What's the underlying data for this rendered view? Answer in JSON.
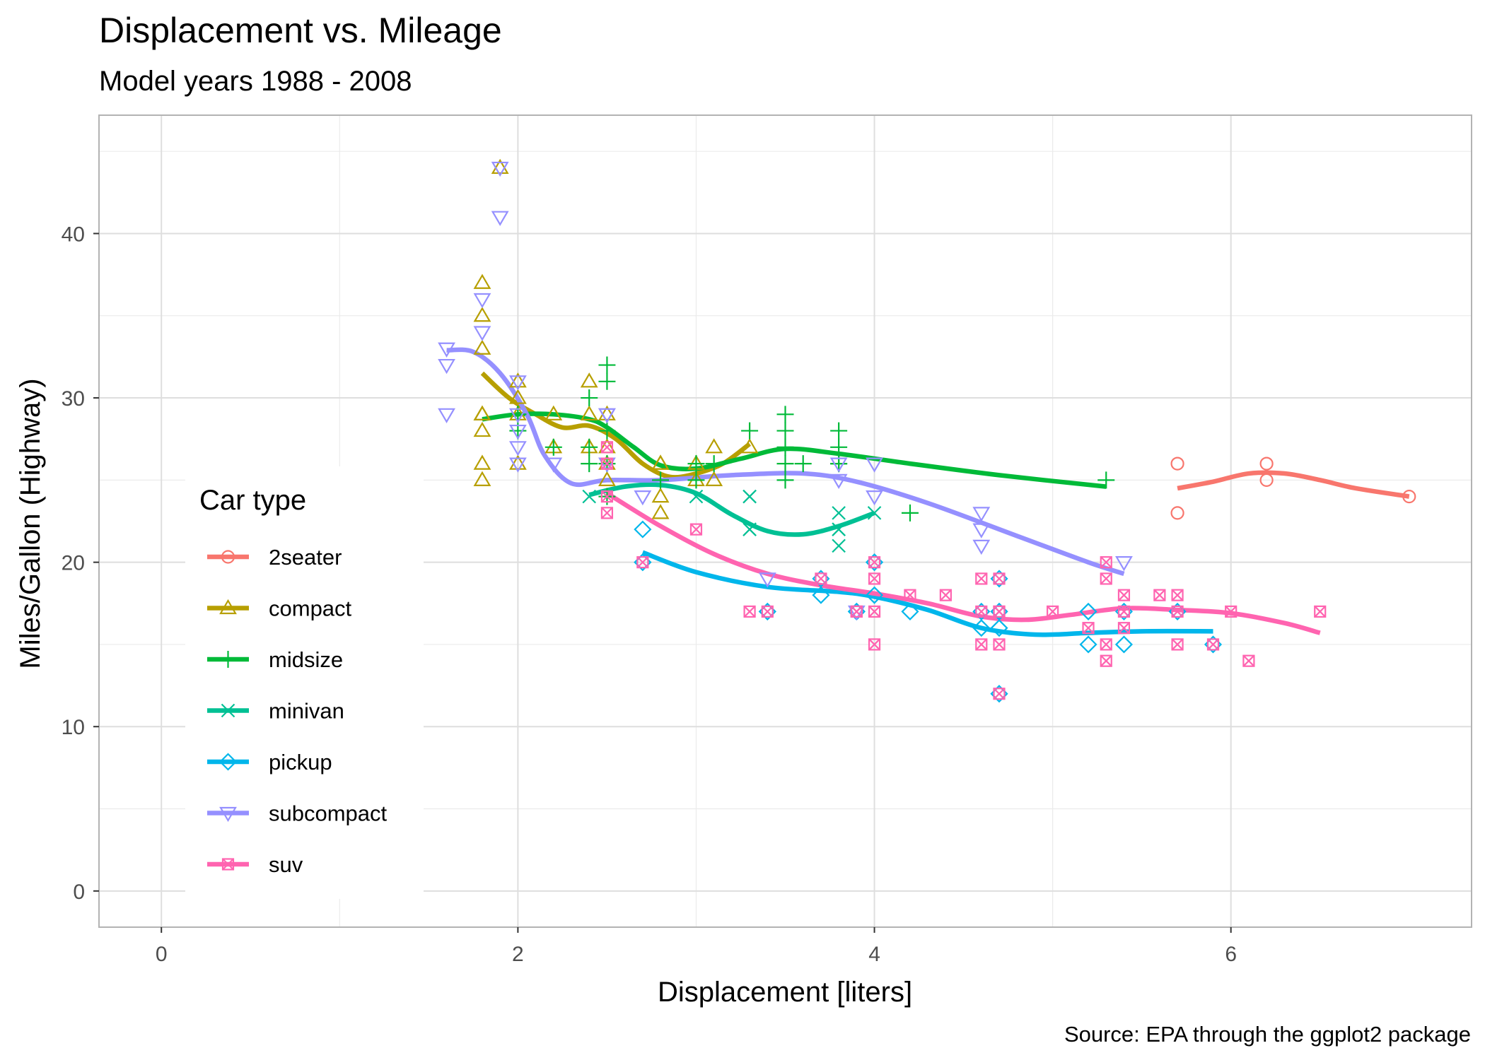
{
  "figure": {
    "title": "Displacement vs. Mileage",
    "subtitle": "Model years 1988 - 2008",
    "caption": "Source: EPA through the ggplot2 package"
  },
  "chart_data": {
    "type": "scatter",
    "title": "Displacement vs. Mileage",
    "subtitle": "Model years 1988 - 2008",
    "xlabel": "Displacement [liters]",
    "ylabel": "Miles/Gallon (Highway)",
    "xlim": [
      -0.35,
      7.35
    ],
    "ylim": [
      -2.2,
      47.2
    ],
    "xticks": [
      0,
      2,
      4,
      6
    ],
    "yticks": [
      0,
      10,
      20,
      30,
      40
    ],
    "grid": true,
    "legend": {
      "title": "Car type",
      "position": "left-inside"
    },
    "smoother": "loess",
    "series": [
      {
        "name": "2seater",
        "color": "#F8766D",
        "marker": "circle",
        "points": [
          [
            5.7,
            26
          ],
          [
            5.7,
            23
          ],
          [
            6.2,
            26
          ],
          [
            6.2,
            25
          ],
          [
            7.0,
            24
          ]
        ],
        "trend": [
          [
            5.7,
            24.5
          ],
          [
            5.9,
            24.9
          ],
          [
            6.1,
            25.4
          ],
          [
            6.3,
            25.4
          ],
          [
            6.5,
            25.0
          ],
          [
            6.7,
            24.5
          ],
          [
            7.0,
            24.0
          ]
        ]
      },
      {
        "name": "compact",
        "color": "#B79F00",
        "marker": "triangle",
        "points": [
          [
            1.8,
            29
          ],
          [
            1.8,
            29
          ],
          [
            2.0,
            31
          ],
          [
            2.0,
            30
          ],
          [
            2.8,
            26
          ],
          [
            2.8,
            26
          ],
          [
            3.1,
            27
          ],
          [
            1.8,
            26
          ],
          [
            1.8,
            25
          ],
          [
            1.8,
            28
          ],
          [
            1.8,
            33
          ],
          [
            1.8,
            35
          ],
          [
            1.8,
            37
          ],
          [
            1.9,
            44
          ],
          [
            2.0,
            29
          ],
          [
            2.0,
            26
          ],
          [
            2.4,
            31
          ],
          [
            2.4,
            29
          ],
          [
            2.4,
            27
          ],
          [
            2.5,
            26
          ],
          [
            2.5,
            25
          ],
          [
            2.8,
            23
          ],
          [
            2.8,
            24
          ],
          [
            3.0,
            26
          ],
          [
            3.0,
            25
          ],
          [
            3.1,
            25
          ],
          [
            3.3,
            27
          ],
          [
            2.2,
            29
          ],
          [
            2.5,
            27
          ],
          [
            2.2,
            27
          ],
          [
            2.5,
            29
          ]
        ],
        "trend": [
          [
            1.8,
            31.5
          ],
          [
            1.95,
            30.0
          ],
          [
            2.1,
            29.0
          ],
          [
            2.25,
            28.2
          ],
          [
            2.4,
            28.3
          ],
          [
            2.55,
            27.5
          ],
          [
            2.7,
            26.0
          ],
          [
            2.85,
            25.2
          ],
          [
            3.0,
            25.4
          ],
          [
            3.15,
            26.0
          ],
          [
            3.3,
            27.2
          ]
        ]
      },
      {
        "name": "midsize",
        "color": "#00BA38",
        "marker": "plus",
        "points": [
          [
            2.4,
            30
          ],
          [
            2.5,
            32
          ],
          [
            2.5,
            31
          ],
          [
            2.4,
            27
          ],
          [
            2.4,
            26
          ],
          [
            2.5,
            28
          ],
          [
            3.5,
            29
          ],
          [
            3.3,
            28
          ],
          [
            3.5,
            28
          ],
          [
            3.8,
            28
          ],
          [
            3.8,
            27
          ],
          [
            3.5,
            26
          ],
          [
            3.8,
            26
          ],
          [
            3.6,
            26
          ],
          [
            3.5,
            25
          ],
          [
            4.2,
            23
          ],
          [
            5.3,
            25
          ],
          [
            2.0,
            28
          ],
          [
            2.0,
            29
          ],
          [
            3.0,
            26
          ],
          [
            3.0,
            25
          ],
          [
            2.5,
            24
          ],
          [
            2.8,
            25
          ],
          [
            3.5,
            27
          ],
          [
            3.8,
            26
          ],
          [
            2.0,
            29
          ],
          [
            2.2,
            27
          ],
          [
            2.5,
            26
          ],
          [
            3.1,
            26
          ]
        ],
        "trend": [
          [
            1.8,
            28.7
          ],
          [
            2.0,
            29.0
          ],
          [
            2.2,
            29.0
          ],
          [
            2.4,
            28.7
          ],
          [
            2.5,
            28.2
          ],
          [
            2.65,
            27.0
          ],
          [
            2.8,
            25.9
          ],
          [
            3.0,
            25.7
          ],
          [
            3.25,
            26.3
          ],
          [
            3.5,
            26.9
          ],
          [
            3.8,
            26.6
          ],
          [
            4.2,
            26.0
          ],
          [
            4.7,
            25.3
          ],
          [
            5.3,
            24.6
          ]
        ]
      },
      {
        "name": "minivan",
        "color": "#00C094",
        "marker": "cross",
        "points": [
          [
            2.4,
            24
          ],
          [
            3.0,
            24
          ],
          [
            3.3,
            22
          ],
          [
            3.3,
            24
          ],
          [
            3.8,
            22
          ],
          [
            3.8,
            21
          ],
          [
            3.8,
            23
          ],
          [
            4.0,
            23
          ],
          [
            3.3,
            22
          ],
          [
            3.8,
            22
          ],
          [
            3.3,
            24
          ]
        ],
        "trend": [
          [
            2.4,
            24.1
          ],
          [
            2.6,
            24.6
          ],
          [
            2.8,
            24.7
          ],
          [
            3.0,
            24.2
          ],
          [
            3.2,
            22.9
          ],
          [
            3.4,
            21.9
          ],
          [
            3.6,
            21.7
          ],
          [
            3.8,
            22.2
          ],
          [
            4.0,
            23.0
          ]
        ]
      },
      {
        "name": "pickup",
        "color": "#00B6EB",
        "marker": "diamond",
        "points": [
          [
            2.7,
            20
          ],
          [
            2.7,
            22
          ],
          [
            2.7,
            20
          ],
          [
            3.4,
            17
          ],
          [
            3.7,
            18
          ],
          [
            3.7,
            19
          ],
          [
            3.9,
            17
          ],
          [
            3.9,
            17
          ],
          [
            4.0,
            20
          ],
          [
            4.0,
            18
          ],
          [
            4.2,
            17
          ],
          [
            4.6,
            17
          ],
          [
            4.6,
            16
          ],
          [
            4.7,
            19
          ],
          [
            4.7,
            17
          ],
          [
            4.7,
            16
          ],
          [
            4.7,
            12
          ],
          [
            5.2,
            17
          ],
          [
            5.2,
            15
          ],
          [
            5.4,
            15
          ],
          [
            5.4,
            17
          ],
          [
            5.7,
            17
          ],
          [
            5.9,
            15
          ],
          [
            4.7,
            17
          ],
          [
            4.7,
            12
          ],
          [
            3.4,
            17
          ],
          [
            4.0,
            20
          ]
        ],
        "trend": [
          [
            2.7,
            20.6
          ],
          [
            3.0,
            19.4
          ],
          [
            3.4,
            18.5
          ],
          [
            3.8,
            18.2
          ],
          [
            4.0,
            17.9
          ],
          [
            4.3,
            17.1
          ],
          [
            4.6,
            16.0
          ],
          [
            4.9,
            15.6
          ],
          [
            5.2,
            15.7
          ],
          [
            5.5,
            15.8
          ],
          [
            5.9,
            15.8
          ]
        ]
      },
      {
        "name": "subcompact",
        "color": "#9590FF",
        "marker": "triangle-down",
        "points": [
          [
            1.6,
            33
          ],
          [
            1.6,
            32
          ],
          [
            1.6,
            29
          ],
          [
            1.8,
            34
          ],
          [
            1.8,
            36
          ],
          [
            1.9,
            41
          ],
          [
            1.9,
            44
          ],
          [
            2.0,
            31
          ],
          [
            2.0,
            27
          ],
          [
            2.0,
            26
          ],
          [
            2.0,
            28
          ],
          [
            2.2,
            26
          ],
          [
            2.5,
            29
          ],
          [
            2.5,
            26
          ],
          [
            2.7,
            24
          ],
          [
            3.8,
            26
          ],
          [
            3.8,
            25
          ],
          [
            4.0,
            26
          ],
          [
            4.0,
            24
          ],
          [
            4.6,
            23
          ],
          [
            4.6,
            22
          ],
          [
            4.6,
            21
          ],
          [
            5.4,
            20
          ],
          [
            3.4,
            19
          ],
          [
            3.9,
            17
          ],
          [
            2.0,
            29
          ],
          [
            2.5,
            29
          ]
        ],
        "trend": [
          [
            1.6,
            32.9
          ],
          [
            1.75,
            32.8
          ],
          [
            1.9,
            31.5
          ],
          [
            2.05,
            29.0
          ],
          [
            2.15,
            26.5
          ],
          [
            2.3,
            24.8
          ],
          [
            2.5,
            25.0
          ],
          [
            2.8,
            25.0
          ],
          [
            3.2,
            25.3
          ],
          [
            3.6,
            25.4
          ],
          [
            3.9,
            24.9
          ],
          [
            4.3,
            23.6
          ],
          [
            4.8,
            21.6
          ],
          [
            5.2,
            20.0
          ],
          [
            5.4,
            19.3
          ]
        ]
      },
      {
        "name": "suv",
        "color": "#FF64B0",
        "marker": "square-cross",
        "points": [
          [
            2.5,
            26
          ],
          [
            2.5,
            27
          ],
          [
            2.5,
            24
          ],
          [
            2.5,
            23
          ],
          [
            2.7,
            20
          ],
          [
            3.0,
            22
          ],
          [
            3.3,
            17
          ],
          [
            3.4,
            17
          ],
          [
            3.7,
            19
          ],
          [
            3.9,
            17
          ],
          [
            4.0,
            20
          ],
          [
            4.0,
            19
          ],
          [
            4.0,
            17
          ],
          [
            4.0,
            15
          ],
          [
            4.2,
            18
          ],
          [
            4.4,
            18
          ],
          [
            4.6,
            19
          ],
          [
            4.6,
            17
          ],
          [
            4.6,
            15
          ],
          [
            4.7,
            19
          ],
          [
            4.7,
            17
          ],
          [
            4.7,
            15
          ],
          [
            4.7,
            12
          ],
          [
            5.0,
            17
          ],
          [
            5.2,
            16
          ],
          [
            5.3,
            20
          ],
          [
            5.3,
            19
          ],
          [
            5.3,
            15
          ],
          [
            5.3,
            14
          ],
          [
            5.4,
            18
          ],
          [
            5.4,
            17
          ],
          [
            5.4,
            16
          ],
          [
            5.6,
            18
          ],
          [
            5.7,
            18
          ],
          [
            5.7,
            17
          ],
          [
            5.7,
            15
          ],
          [
            6.0,
            17
          ],
          [
            6.1,
            14
          ],
          [
            6.5,
            17
          ],
          [
            5.9,
            15
          ],
          [
            3.9,
            17
          ],
          [
            4.7,
            17
          ]
        ],
        "trend": [
          [
            2.5,
            24.2
          ],
          [
            2.8,
            22.2
          ],
          [
            3.1,
            20.5
          ],
          [
            3.4,
            19.3
          ],
          [
            3.7,
            18.6
          ],
          [
            4.0,
            18.1
          ],
          [
            4.3,
            17.5
          ],
          [
            4.6,
            16.7
          ],
          [
            4.85,
            16.5
          ],
          [
            5.1,
            16.8
          ],
          [
            5.4,
            17.2
          ],
          [
            5.7,
            17.1
          ],
          [
            6.0,
            16.9
          ],
          [
            6.3,
            16.3
          ],
          [
            6.5,
            15.7
          ]
        ]
      }
    ]
  }
}
